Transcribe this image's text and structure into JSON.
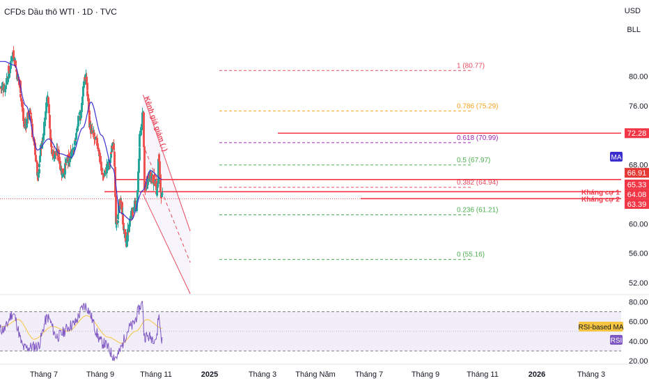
{
  "header": {
    "title": "CFDs Dầu thô WTI · 1D · TVC",
    "currency": "USD",
    "unit": "BLL"
  },
  "colors": {
    "up": "#26a69a",
    "down": "#ef5350",
    "ma": "#3b2ecf",
    "fib_red": "#e84a5f",
    "fib_orange": "#f7a21b",
    "fib_purple": "#9c27b0",
    "fib_green": "#4caf50",
    "resistance": "#f23645",
    "rsi_line": "#7e57c2",
    "rsi_ma": "#f5c542",
    "rsi_band": "#ede7f6"
  },
  "chart_data": [
    {
      "type": "candlestick",
      "title": "CFDs Dầu thô WTI · 1D · TVC",
      "x_ticks": [
        "Tháng 7",
        "Tháng 9",
        "Tháng 11",
        "2025",
        "Tháng 3",
        "Tháng Năm",
        "Tháng 7",
        "Tháng 9",
        "Tháng 11",
        "2026",
        "Tháng 3"
      ],
      "y_ticks": [
        80.0,
        76.0,
        68.0,
        60.0,
        56.0,
        52.0
      ],
      "ylim": [
        50.5,
        87.5
      ],
      "close_anchors": [
        {
          "date": "2024-06-12",
          "close": 78.5
        },
        {
          "date": "2024-06-25",
          "close": 80.8
        },
        {
          "date": "2024-07-05",
          "close": 83.2
        },
        {
          "date": "2024-07-20",
          "close": 79.5
        },
        {
          "date": "2024-08-05",
          "close": 73.5
        },
        {
          "date": "2024-08-20",
          "close": 75.0
        },
        {
          "date": "2024-09-01",
          "close": 70.5
        },
        {
          "date": "2024-09-10",
          "close": 66.0
        },
        {
          "date": "2024-09-20",
          "close": 70.8
        },
        {
          "date": "2024-10-07",
          "close": 77.2
        },
        {
          "date": "2024-10-18",
          "close": 69.5
        },
        {
          "date": "2024-11-01",
          "close": 69.5
        },
        {
          "date": "2024-11-15",
          "close": 67.0
        },
        {
          "date": "2024-12-01",
          "close": 68.5
        },
        {
          "date": "2024-12-15",
          "close": 70.5
        },
        {
          "date": "2025-01-01",
          "close": 74.5
        },
        {
          "date": "2025-01-15",
          "close": 80.0
        },
        {
          "date": "2025-02-01",
          "close": 72.5
        },
        {
          "date": "2025-02-15",
          "close": 71.0
        },
        {
          "date": "2025-03-05",
          "close": 66.5
        },
        {
          "date": "2025-03-20",
          "close": 68.0
        },
        {
          "date": "2025-04-02",
          "close": 71.5
        },
        {
          "date": "2025-04-08",
          "close": 59.5
        },
        {
          "date": "2025-04-20",
          "close": 63.0
        },
        {
          "date": "2025-05-05",
          "close": 57.5
        },
        {
          "date": "2025-05-20",
          "close": 61.5
        },
        {
          "date": "2025-06-02",
          "close": 62.5
        },
        {
          "date": "2025-06-13",
          "close": 72.0
        },
        {
          "date": "2025-06-20",
          "close": 75.0
        },
        {
          "date": "2025-06-24",
          "close": 64.5
        },
        {
          "date": "2025-07-05",
          "close": 66.5
        },
        {
          "date": "2025-07-20",
          "close": 66.0
        },
        {
          "date": "2025-07-28",
          "close": 64.5
        },
        {
          "date": "2025-08-01",
          "close": 69.5
        },
        {
          "date": "2025-08-06",
          "close": 64.5
        },
        {
          "date": "2025-08-12",
          "close": 63.39
        }
      ],
      "moving_average": {
        "label": "MA",
        "anchors": [
          {
            "date": "2024-06-12",
            "value": 82.0
          },
          {
            "date": "2024-07-10",
            "value": 81.5
          },
          {
            "date": "2024-08-10",
            "value": 76.0
          },
          {
            "date": "2024-09-10",
            "value": 70.0
          },
          {
            "date": "2024-10-10",
            "value": 71.5
          },
          {
            "date": "2024-11-10",
            "value": 69.5
          },
          {
            "date": "2024-12-10",
            "value": 69.0
          },
          {
            "date": "2025-01-10",
            "value": 73.0
          },
          {
            "date": "2025-02-01",
            "value": 76.5
          },
          {
            "date": "2025-03-01",
            "value": 72.0
          },
          {
            "date": "2025-04-01",
            "value": 67.5
          },
          {
            "date": "2025-04-20",
            "value": 61.5
          },
          {
            "date": "2025-05-20",
            "value": 60.5
          },
          {
            "date": "2025-06-20",
            "value": 64.5
          },
          {
            "date": "2025-07-10",
            "value": 67.2
          },
          {
            "date": "2025-08-12",
            "value": 66.0
          }
        ]
      },
      "fibonacci": [
        {
          "label": "1 (80.77)",
          "value": 80.77
        },
        {
          "label": "0.786 (75.29)",
          "value": 75.29
        },
        {
          "label": "0.618 (70.99)",
          "value": 70.99
        },
        {
          "label": "0.5 (67.97)",
          "value": 67.97
        },
        {
          "label": "0.382 (64.94)",
          "value": 64.94
        },
        {
          "label": "0.236 (61.21)",
          "value": 61.21
        },
        {
          "label": "0 (55.16)",
          "value": 55.16
        }
      ],
      "resistance_lines": [
        {
          "label": "",
          "value": 72.28
        },
        {
          "label": "",
          "value": 66.0
        },
        {
          "label": "Kháng cự 1",
          "value": 64.35
        },
        {
          "label": "Kháng cự 2",
          "value": 63.4
        }
      ],
      "channel": {
        "label": "Kênh giá giảm (↓)",
        "start": "2025-06-20",
        "end": "2025-10-25",
        "upper": [
          77.5,
          59.0
        ],
        "lower": [
          64.0,
          50.5
        ]
      },
      "price_labels": [
        {
          "label": "72.28",
          "value": 72.28
        },
        {
          "label": "66.91",
          "value": 66.91
        },
        {
          "label": "65.33",
          "value": 65.33
        },
        {
          "label": "64.08",
          "value": 64.08
        },
        {
          "label": "63.39",
          "value": 63.39
        }
      ]
    },
    {
      "type": "line",
      "title": "",
      "y_ticks": [
        80.0,
        60.0,
        40.0,
        20.0
      ],
      "ylim": [
        18,
        86
      ],
      "series": [
        {
          "name": "RSI",
          "anchors": [
            {
              "date": "2024-06-12",
              "value": 52
            },
            {
              "date": "2024-07-05",
              "value": 68
            },
            {
              "date": "2024-08-05",
              "value": 33
            },
            {
              "date": "2024-09-10",
              "value": 35
            },
            {
              "date": "2024-10-07",
              "value": 64
            },
            {
              "date": "2024-11-01",
              "value": 45
            },
            {
              "date": "2024-12-15",
              "value": 57
            },
            {
              "date": "2025-01-15",
              "value": 76
            },
            {
              "date": "2025-03-05",
              "value": 38
            },
            {
              "date": "2025-04-08",
              "value": 24
            },
            {
              "date": "2025-05-20",
              "value": 55
            },
            {
              "date": "2025-06-20",
              "value": 78
            },
            {
              "date": "2025-06-24",
              "value": 45
            },
            {
              "date": "2025-07-28",
              "value": 43
            },
            {
              "date": "2025-08-01",
              "value": 66
            },
            {
              "date": "2025-08-12",
              "value": 40
            }
          ]
        },
        {
          "name": "RSI-based MA",
          "anchors": [
            {
              "date": "2024-06-12",
              "value": 55
            },
            {
              "date": "2024-07-20",
              "value": 62
            },
            {
              "date": "2024-09-01",
              "value": 42
            },
            {
              "date": "2024-10-20",
              "value": 55
            },
            {
              "date": "2024-12-01",
              "value": 50
            },
            {
              "date": "2025-01-20",
              "value": 66
            },
            {
              "date": "2025-03-20",
              "value": 44
            },
            {
              "date": "2025-04-25",
              "value": 38
            },
            {
              "date": "2025-06-01",
              "value": 50
            },
            {
              "date": "2025-07-01",
              "value": 62
            },
            {
              "date": "2025-08-12",
              "value": 53
            }
          ]
        }
      ],
      "bands": [
        70,
        30
      ],
      "labels": [
        "RSI-based MA",
        "RSI"
      ]
    }
  ]
}
